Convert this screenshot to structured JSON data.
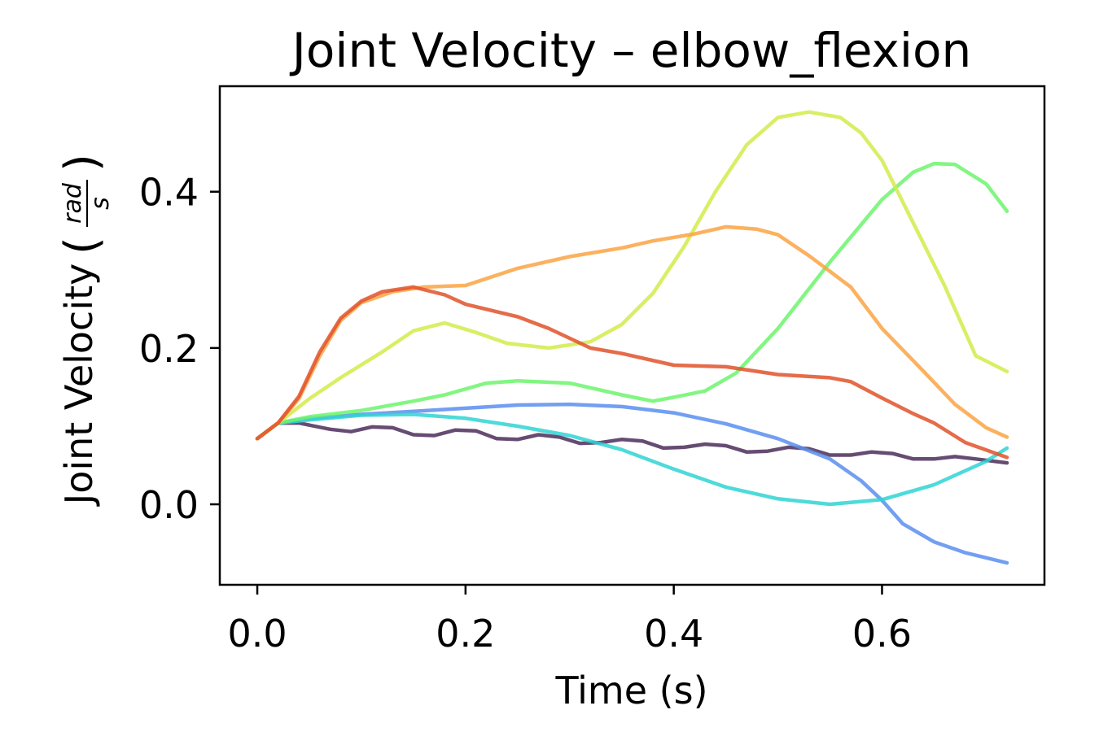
{
  "chart_data": {
    "type": "line",
    "title": "Joint Velocity – elbow_flexion",
    "xlabel": "Time (s)",
    "ylabel": "Joint Velocity",
    "ylabel_unit_num": "rad",
    "ylabel_unit_den": "s",
    "xlim": [
      -0.036,
      0.756
    ],
    "ylim": [
      -0.103,
      0.535
    ],
    "xticks": [
      0.0,
      0.2,
      0.4,
      0.6
    ],
    "xtick_labels": [
      "0.0",
      "0.2",
      "0.4",
      "0.6"
    ],
    "yticks": [
      0.0,
      0.2,
      0.4
    ],
    "ytick_labels": [
      "0.0",
      "0.2",
      "0.4"
    ],
    "grid": false,
    "legend": "none",
    "series": [
      {
        "name": "dark-purple",
        "color": "#4b2d5a",
        "x": [
          0.0,
          0.02,
          0.04,
          0.07,
          0.09,
          0.11,
          0.13,
          0.15,
          0.17,
          0.19,
          0.21,
          0.23,
          0.25,
          0.27,
          0.29,
          0.31,
          0.33,
          0.35,
          0.37,
          0.39,
          0.41,
          0.43,
          0.45,
          0.47,
          0.49,
          0.51,
          0.53,
          0.55,
          0.57,
          0.59,
          0.61,
          0.63,
          0.65,
          0.67,
          0.69,
          0.72
        ],
        "y": [
          0.084,
          0.104,
          0.104,
          0.096,
          0.093,
          0.099,
          0.098,
          0.089,
          0.088,
          0.095,
          0.094,
          0.084,
          0.083,
          0.089,
          0.086,
          0.078,
          0.079,
          0.083,
          0.081,
          0.072,
          0.073,
          0.077,
          0.075,
          0.067,
          0.068,
          0.073,
          0.071,
          0.063,
          0.063,
          0.067,
          0.065,
          0.058,
          0.058,
          0.061,
          0.058,
          0.053
        ]
      },
      {
        "name": "blue",
        "color": "#5b8ef0",
        "x": [
          0.0,
          0.02,
          0.05,
          0.1,
          0.15,
          0.2,
          0.25,
          0.3,
          0.35,
          0.4,
          0.45,
          0.5,
          0.55,
          0.58,
          0.6,
          0.62,
          0.65,
          0.68,
          0.72
        ],
        "y": [
          0.084,
          0.104,
          0.11,
          0.115,
          0.119,
          0.123,
          0.127,
          0.128,
          0.125,
          0.117,
          0.103,
          0.084,
          0.058,
          0.03,
          0.005,
          -0.025,
          -0.048,
          -0.062,
          -0.075
        ]
      },
      {
        "name": "cyan",
        "color": "#2fd4d4",
        "x": [
          0.0,
          0.02,
          0.05,
          0.1,
          0.15,
          0.2,
          0.25,
          0.3,
          0.35,
          0.4,
          0.45,
          0.5,
          0.55,
          0.6,
          0.65,
          0.7,
          0.72
        ],
        "y": [
          0.084,
          0.104,
          0.108,
          0.114,
          0.115,
          0.11,
          0.1,
          0.088,
          0.07,
          0.045,
          0.022,
          0.007,
          0.0,
          0.006,
          0.025,
          0.055,
          0.072
        ]
      },
      {
        "name": "green",
        "color": "#6cf56c",
        "x": [
          0.0,
          0.02,
          0.05,
          0.1,
          0.15,
          0.18,
          0.22,
          0.25,
          0.3,
          0.35,
          0.38,
          0.4,
          0.43,
          0.46,
          0.5,
          0.55,
          0.6,
          0.63,
          0.65,
          0.67,
          0.7,
          0.72
        ],
        "y": [
          0.084,
          0.104,
          0.112,
          0.12,
          0.132,
          0.14,
          0.155,
          0.158,
          0.155,
          0.14,
          0.132,
          0.137,
          0.145,
          0.168,
          0.225,
          0.31,
          0.39,
          0.425,
          0.436,
          0.435,
          0.41,
          0.375
        ]
      },
      {
        "name": "yellow-green",
        "color": "#d4eb4a",
        "x": [
          0.0,
          0.02,
          0.05,
          0.08,
          0.12,
          0.15,
          0.18,
          0.21,
          0.24,
          0.28,
          0.32,
          0.35,
          0.38,
          0.41,
          0.44,
          0.47,
          0.5,
          0.53,
          0.56,
          0.58,
          0.6,
          0.63,
          0.66,
          0.69,
          0.72
        ],
        "y": [
          0.084,
          0.104,
          0.135,
          0.162,
          0.195,
          0.222,
          0.232,
          0.22,
          0.206,
          0.2,
          0.208,
          0.23,
          0.27,
          0.33,
          0.4,
          0.46,
          0.495,
          0.502,
          0.495,
          0.475,
          0.44,
          0.36,
          0.28,
          0.19,
          0.17
        ]
      },
      {
        "name": "orange",
        "color": "#fca343",
        "x": [
          0.0,
          0.02,
          0.04,
          0.06,
          0.08,
          0.1,
          0.13,
          0.16,
          0.2,
          0.25,
          0.3,
          0.35,
          0.38,
          0.42,
          0.45,
          0.48,
          0.5,
          0.53,
          0.57,
          0.6,
          0.64,
          0.67,
          0.7,
          0.72
        ],
        "y": [
          0.084,
          0.104,
          0.135,
          0.19,
          0.235,
          0.258,
          0.272,
          0.278,
          0.28,
          0.302,
          0.317,
          0.328,
          0.337,
          0.346,
          0.355,
          0.352,
          0.345,
          0.318,
          0.278,
          0.225,
          0.17,
          0.128,
          0.098,
          0.086
        ]
      },
      {
        "name": "red-orange",
        "color": "#e0522a",
        "x": [
          0.0,
          0.02,
          0.04,
          0.06,
          0.08,
          0.1,
          0.12,
          0.15,
          0.18,
          0.2,
          0.25,
          0.28,
          0.32,
          0.35,
          0.4,
          0.45,
          0.5,
          0.55,
          0.57,
          0.6,
          0.63,
          0.65,
          0.68,
          0.72
        ],
        "y": [
          0.084,
          0.104,
          0.138,
          0.195,
          0.238,
          0.26,
          0.272,
          0.278,
          0.268,
          0.256,
          0.24,
          0.225,
          0.2,
          0.193,
          0.178,
          0.176,
          0.166,
          0.162,
          0.157,
          0.136,
          0.116,
          0.104,
          0.079,
          0.06
        ]
      }
    ]
  }
}
